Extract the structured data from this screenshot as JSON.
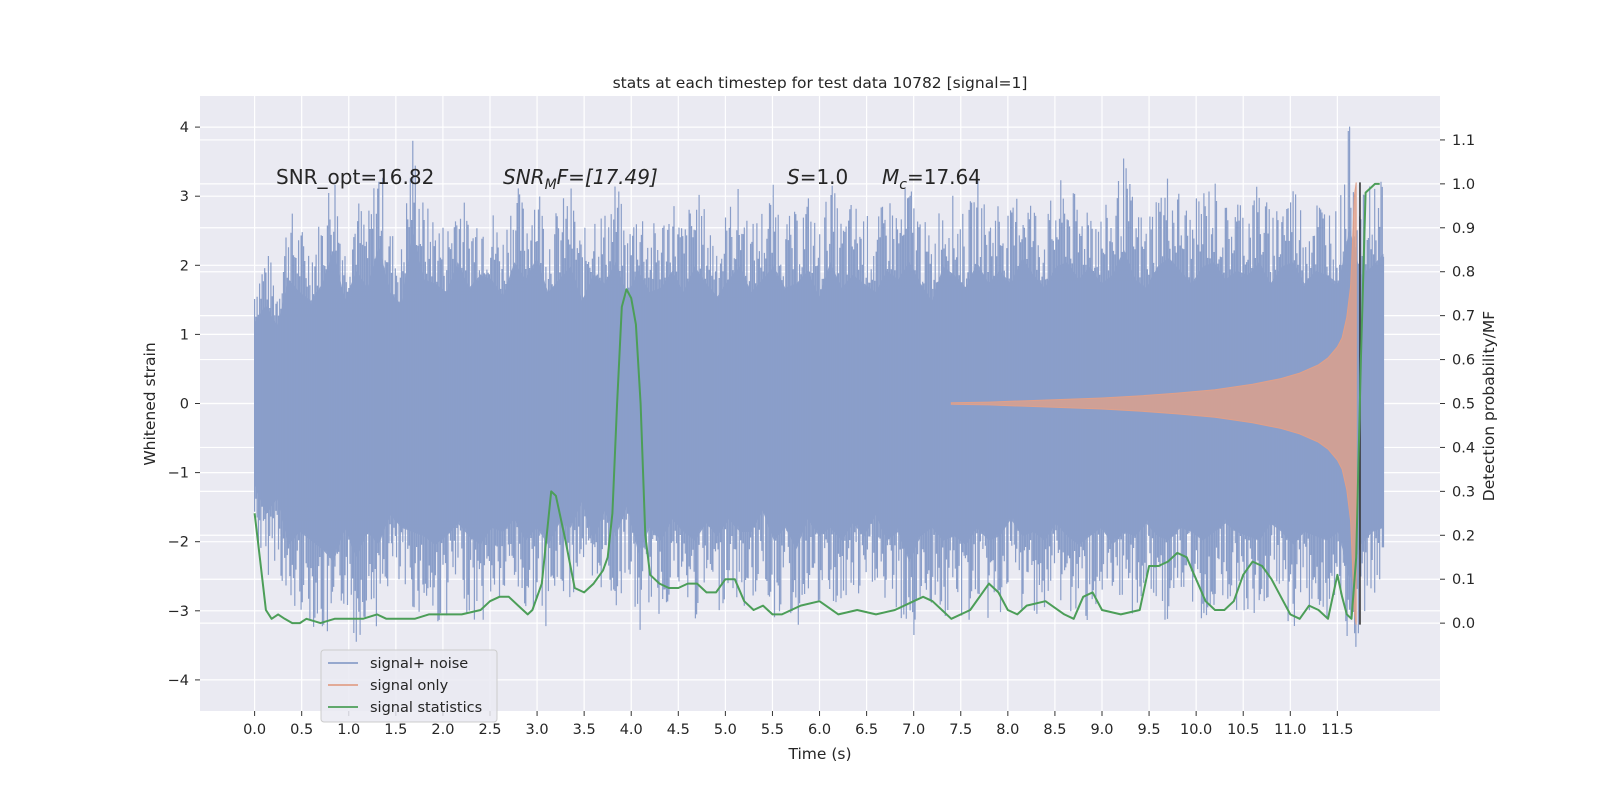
{
  "chart_data": {
    "type": "line",
    "title": "stats at each timestep for test data 10782 [signal=1]",
    "xlabel": "Time (s)",
    "ylabel": "Whitened strain",
    "y2label": "Detection probability/MF",
    "xlim": [
      -0.58,
      12.59
    ],
    "ylim": [
      -4.45,
      4.45
    ],
    "y2lim": [
      -0.2,
      1.2
    ],
    "x_ticks": [
      0.0,
      0.5,
      1.0,
      1.5,
      2.0,
      2.5,
      3.0,
      3.5,
      4.0,
      4.5,
      5.0,
      5.5,
      6.0,
      6.5,
      7.0,
      7.5,
      8.0,
      8.5,
      9.0,
      9.5,
      10.0,
      10.5,
      11.0,
      11.5
    ],
    "x_tick_labels": [
      "0.0",
      "0.5",
      "1.0",
      "1.5",
      "2.0",
      "2.5",
      "3.0",
      "3.5",
      "4.0",
      "4.5",
      "5.0",
      "5.5",
      "6.0",
      "6.5",
      "7.0",
      "7.5",
      "8.0",
      "8.5",
      "9.0",
      "9.5",
      "10.0",
      "10.5",
      "11.0",
      "11.5"
    ],
    "y_ticks": [
      -4,
      -3,
      -2,
      -1,
      0,
      1,
      2,
      3,
      4
    ],
    "y_tick_labels": [
      "−4",
      "−3",
      "−2",
      "−1",
      "0",
      "1",
      "2",
      "3",
      "4"
    ],
    "y2_ticks": [
      0.0,
      0.1,
      0.2,
      0.3,
      0.4,
      0.5,
      0.6,
      0.7,
      0.8,
      0.9,
      1.0,
      1.1
    ],
    "y2_tick_labels": [
      "0.0",
      "0.1",
      "0.2",
      "0.3",
      "0.4",
      "0.5",
      "0.6",
      "0.7",
      "0.8",
      "0.9",
      "1.0",
      "1.1"
    ],
    "grid": true,
    "legend_position": "lower-left",
    "annotations": {
      "snr_opt": "SNR_opt=16.82",
      "snr_mf_name": "SNR",
      "snr_mf_sub": "M",
      "snr_mf_rest": "F=[17.49]",
      "s_name": "S",
      "s_rest": "=1.0",
      "mc_name": "M",
      "mc_sub": "c",
      "mc_rest": "=17.64"
    },
    "detection_marker_x": 11.74,
    "series": [
      {
        "name": "signal+ noise",
        "axis": "left",
        "color": "#8a9ec9",
        "t_range": [
          0.0,
          11.99
        ],
        "envelope_upper": [
          1.9,
          2.3,
          1.8,
          2.9,
          2.6,
          2.4,
          2.8,
          3.6,
          2.4,
          3.1,
          2.7,
          3.7,
          2.6,
          2.3,
          4.0,
          2.9,
          2.8,
          2.6,
          3.3,
          2.7,
          3.0,
          2.9,
          2.5,
          3.3,
          2.9,
          3.4,
          2.6,
          2.9,
          3.2,
          2.4,
          3.0,
          2.8,
          3.3,
          2.5,
          3.1,
          2.6,
          2.7,
          3.1,
          2.6,
          3.2,
          2.8,
          2.5,
          2.9,
          3.2,
          2.6,
          2.9,
          3.2,
          2.7,
          2.8,
          3.1,
          2.5,
          3.3,
          2.7,
          3.0,
          2.8,
          2.6,
          3.1,
          2.9,
          3.3,
          2.8,
          2.4,
          3.2,
          3.0,
          2.7,
          3.3,
          2.8,
          3.1,
          2.8,
          3.4,
          3.0,
          2.7,
          3.2,
          3.3,
          2.9,
          3.2,
          2.8,
          3.0,
          3.6,
          2.9,
          2.7,
          3.2,
          3.4,
          3.1,
          2.8,
          3.2,
          3.3,
          2.9,
          3.1,
          3.0,
          3.3,
          2.8,
          3.2,
          3.3,
          2.8,
          3.1,
          3.0,
          2.8,
          4.1,
          3.0,
          3.2,
          3.5
        ],
        "envelope_lower": [
          -1.9,
          -2.6,
          -2.2,
          -3.3,
          -3.0,
          -3.2,
          -3.4,
          -3.7,
          -2.9,
          -3.6,
          -3.0,
          -3.3,
          -2.6,
          -2.9,
          -3.0,
          -3.1,
          -3.3,
          -3.1,
          -2.8,
          -3.1,
          -3.3,
          -2.9,
          -3.0,
          -2.7,
          -3.2,
          -2.9,
          -3.3,
          -2.8,
          -2.9,
          -2.3,
          -3.2,
          -2.5,
          -3.1,
          -2.4,
          -3.5,
          -2.9,
          -3.2,
          -2.7,
          -3.0,
          -3.2,
          -2.8,
          -3.1,
          -2.7,
          -3.0,
          -3.0,
          -2.5,
          -3.2,
          -2.9,
          -3.4,
          -2.7,
          -3.1,
          -2.9,
          -3.2,
          -2.8,
          -3.1,
          -2.6,
          -3.2,
          -3.0,
          -3.7,
          -3.1,
          -2.9,
          -3.2,
          -3.1,
          -3.3,
          -2.9,
          -3.2,
          -3.1,
          -2.7,
          -3.1,
          -3.0,
          -3.2,
          -2.8,
          -3.1,
          -3.3,
          -3.1,
          -2.9,
          -3.3,
          -3.0,
          -3.1,
          -2.8,
          -3.1,
          -3.2,
          -2.9,
          -3.0,
          -3.2,
          -3.0,
          -2.8,
          -3.0,
          -3.1,
          -3.2,
          -2.8,
          -3.0,
          -3.3,
          -3.0,
          -3.1,
          -3.2,
          -3.0,
          -4.1,
          -3.3,
          -3.0,
          -2.9
        ]
      },
      {
        "name": "signal only",
        "axis": "left",
        "color": "#e0a08a",
        "t": [
          7.4,
          7.8,
          8.2,
          8.6,
          9.0,
          9.4,
          9.8,
          10.2,
          10.6,
          10.9,
          11.1,
          11.3,
          11.4,
          11.5,
          11.55,
          11.6,
          11.64,
          11.66,
          11.68,
          11.7
        ],
        "envelope": [
          0.01,
          0.02,
          0.04,
          0.06,
          0.08,
          0.11,
          0.15,
          0.2,
          0.28,
          0.36,
          0.44,
          0.56,
          0.66,
          0.82,
          0.95,
          1.25,
          1.7,
          2.3,
          3.0,
          3.2
        ]
      },
      {
        "name": "signal statistics",
        "axis": "right",
        "color": "#4c9e58",
        "t": [
          0.0,
          0.06,
          0.12,
          0.18,
          0.25,
          0.32,
          0.4,
          0.48,
          0.55,
          0.7,
          0.85,
          1.0,
          1.15,
          1.3,
          1.4,
          1.55,
          1.7,
          1.85,
          2.0,
          2.2,
          2.4,
          2.5,
          2.6,
          2.7,
          2.8,
          2.9,
          2.95,
          3.05,
          3.15,
          3.2,
          3.3,
          3.4,
          3.5,
          3.6,
          3.7,
          3.75,
          3.8,
          3.85,
          3.9,
          3.95,
          4.0,
          4.05,
          4.1,
          4.15,
          4.2,
          4.3,
          4.4,
          4.5,
          4.6,
          4.7,
          4.8,
          4.9,
          5.0,
          5.1,
          5.2,
          5.3,
          5.4,
          5.5,
          5.6,
          5.8,
          6.0,
          6.2,
          6.4,
          6.6,
          6.8,
          7.0,
          7.1,
          7.2,
          7.3,
          7.4,
          7.6,
          7.8,
          7.9,
          8.0,
          8.1,
          8.2,
          8.4,
          8.6,
          8.7,
          8.8,
          8.9,
          9.0,
          9.2,
          9.4,
          9.5,
          9.6,
          9.7,
          9.8,
          9.9,
          10.0,
          10.1,
          10.2,
          10.3,
          10.4,
          10.5,
          10.6,
          10.7,
          10.8,
          10.9,
          11.0,
          11.1,
          11.2,
          11.3,
          11.4,
          11.5,
          11.55,
          11.6,
          11.65,
          11.7,
          11.75,
          11.8,
          11.85,
          11.9,
          11.95
        ],
        "values": [
          0.25,
          0.14,
          0.03,
          0.01,
          0.02,
          0.01,
          0.0,
          0.0,
          0.01,
          0.0,
          0.01,
          0.01,
          0.01,
          0.02,
          0.01,
          0.01,
          0.01,
          0.02,
          0.02,
          0.02,
          0.03,
          0.05,
          0.06,
          0.06,
          0.04,
          0.02,
          0.03,
          0.09,
          0.3,
          0.29,
          0.19,
          0.08,
          0.07,
          0.09,
          0.12,
          0.15,
          0.25,
          0.5,
          0.72,
          0.76,
          0.74,
          0.68,
          0.5,
          0.2,
          0.11,
          0.09,
          0.08,
          0.08,
          0.09,
          0.09,
          0.07,
          0.07,
          0.1,
          0.1,
          0.05,
          0.03,
          0.04,
          0.02,
          0.02,
          0.04,
          0.05,
          0.02,
          0.03,
          0.02,
          0.03,
          0.05,
          0.06,
          0.05,
          0.03,
          0.01,
          0.03,
          0.09,
          0.07,
          0.03,
          0.02,
          0.04,
          0.05,
          0.02,
          0.01,
          0.06,
          0.07,
          0.03,
          0.02,
          0.03,
          0.13,
          0.13,
          0.14,
          0.16,
          0.15,
          0.1,
          0.05,
          0.03,
          0.03,
          0.05,
          0.11,
          0.14,
          0.13,
          0.1,
          0.06,
          0.02,
          0.01,
          0.04,
          0.03,
          0.01,
          0.11,
          0.06,
          0.02,
          0.01,
          0.15,
          0.6,
          0.98,
          0.99,
          1.0,
          1.0
        ]
      }
    ]
  }
}
